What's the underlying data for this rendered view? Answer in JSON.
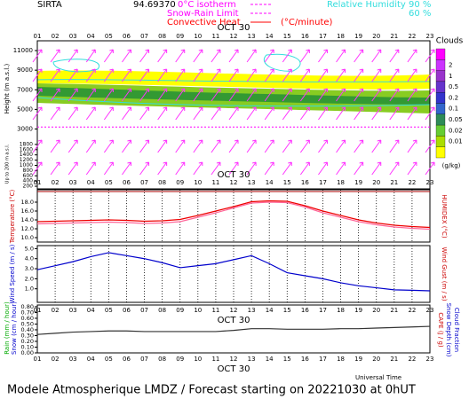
{
  "header": {
    "station": "SIRTA",
    "code": "94.69370",
    "legend": [
      "0°C isotherm",
      "Snow-Rain Limit",
      "Convective Heat"
    ],
    "legend_unit": "(°C/minute)",
    "humidity": "Relative Humidity",
    "humidity_levels": [
      "90 %",
      "60 %"
    ]
  },
  "date": "OCT 30",
  "xlabel": "Universal Time",
  "footer": "Modele Atmospherique LMDZ / Forecast starting on 20221030 at 0hUT",
  "chart_data": [
    {
      "type": "contour",
      "ylabel": "Height (m a.s.l.)",
      "ylabel2": "Up to 200 m a.s.l.",
      "categories": [
        "01",
        "02",
        "03",
        "04",
        "05",
        "06",
        "07",
        "08",
        "09",
        "10",
        "11",
        "12",
        "13",
        "14",
        "15",
        "16",
        "17",
        "18",
        "19",
        "20",
        "21",
        "22",
        "23"
      ],
      "ylim": [
        2500,
        12000
      ],
      "yticks": [
        3000,
        5000,
        7000,
        9000,
        11000
      ],
      "ylim2": [
        100,
        2000
      ],
      "yticks2": [
        200,
        400,
        600,
        800,
        1000,
        1200,
        1400,
        1600,
        1800
      ],
      "isotherm": 3200,
      "colorbar": {
        "title": "Clouds",
        "unit": "(g/kg)",
        "ticks": [
          2,
          1,
          0.5,
          0.2,
          0.1,
          0.05,
          0.02,
          0.01
        ],
        "colors": [
          "#ff00ff",
          "#cc33ff",
          "#9933cc",
          "#6633cc",
          "#3333cc",
          "#3366cc",
          "#2e8b57",
          "#66cc33",
          "#aadd00",
          "#ffff00"
        ]
      }
    },
    {
      "type": "line",
      "ylabel": "Temperature (°C)",
      "y2label": "HUMIDEX (°C)",
      "categories": [
        "01",
        "02",
        "03",
        "04",
        "05",
        "06",
        "07",
        "08",
        "09",
        "10",
        "11",
        "12",
        "13",
        "14",
        "15",
        "16",
        "17",
        "18",
        "19",
        "20",
        "21",
        "22",
        "23"
      ],
      "ylim": [
        9,
        20.8
      ],
      "yticks": [
        {
          "value": 10,
          "label": "10.0"
        },
        {
          "value": 12,
          "label": "12.0"
        },
        {
          "value": 14,
          "label": "14.0"
        },
        {
          "value": 16,
          "label": "16.0"
        },
        {
          "value": 18,
          "label": "18.0"
        }
      ],
      "series": [
        {
          "name": "Temperature",
          "color": "#ee0000",
          "values": [
            13.6,
            13.7,
            13.8,
            13.9,
            14.0,
            13.9,
            13.7,
            13.8,
            14.1,
            15.0,
            16.0,
            17.0,
            18.1,
            18.3,
            18.2,
            17.2,
            16.0,
            15.0,
            14.0,
            13.3,
            12.8,
            12.5,
            12.3
          ]
        },
        {
          "name": "HUMIDEX",
          "color": "#ff6699",
          "values": [
            13.1,
            13.2,
            13.3,
            13.4,
            13.5,
            13.4,
            13.2,
            13.3,
            13.6,
            14.6,
            15.6,
            16.7,
            17.8,
            18.0,
            17.9,
            16.9,
            15.6,
            14.6,
            13.6,
            12.9,
            12.4,
            12.1,
            11.9
          ]
        }
      ]
    },
    {
      "type": "line",
      "ylabel": "Wind Speed (m / s)",
      "y2label": "Wind Gust (m / s)",
      "categories": [
        "01",
        "02",
        "03",
        "04",
        "05",
        "06",
        "07",
        "08",
        "09",
        "10",
        "11",
        "12",
        "13",
        "14",
        "15",
        "16",
        "17",
        "18",
        "19",
        "20",
        "21",
        "22",
        "23"
      ],
      "ylim": [
        -0.35,
        5.3
      ],
      "yticks": [
        {
          "value": 1,
          "label": "1.0"
        },
        {
          "value": 2,
          "label": "2.0"
        },
        {
          "value": 3,
          "label": "3.0"
        },
        {
          "value": 4,
          "label": "4.0"
        },
        {
          "value": 5,
          "label": "5.0"
        }
      ],
      "series": [
        {
          "name": "Wind Speed",
          "color": "#0000cc",
          "values": [
            2.9,
            3.3,
            3.7,
            4.2,
            4.6,
            4.3,
            4.0,
            3.6,
            3.1,
            3.3,
            3.5,
            3.9,
            4.3,
            3.5,
            2.6,
            2.3,
            2.0,
            1.6,
            1.3,
            1.1,
            0.9,
            0.85,
            0.8
          ]
        }
      ]
    },
    {
      "type": "line",
      "ylabel": "Rain (mm / hour)",
      "ylabel2": "Snow (cm / hour)",
      "y2label": "CAPE (J / g)",
      "y2label2": "Snow Depth (cm)",
      "y2label3": "Cloud Fraction",
      "categories": [
        "01",
        "02",
        "03",
        "04",
        "05",
        "06",
        "07",
        "08",
        "09",
        "10",
        "11",
        "12",
        "13",
        "14",
        "15",
        "16",
        "17",
        "18",
        "19",
        "20",
        "21",
        "22",
        "23"
      ],
      "ylim": [
        0,
        0.83
      ],
      "yticks": [
        {
          "value": 0,
          "label": "0.00"
        },
        {
          "value": 0.1,
          "label": "0.10"
        },
        {
          "value": 0.2,
          "label": "0.20"
        },
        {
          "value": 0.3,
          "label": "0.30"
        },
        {
          "value": 0.4,
          "label": "0.40"
        },
        {
          "value": 0.5,
          "label": "0.50"
        },
        {
          "value": 0.6,
          "label": "0.60"
        },
        {
          "value": 0.7,
          "label": "0.70"
        },
        {
          "value": 0.8,
          "label": "0.80"
        }
      ],
      "series": [
        {
          "name": "Cloud Fraction",
          "color": "#333333",
          "values": [
            0.32,
            0.34,
            0.36,
            0.37,
            0.38,
            0.38,
            0.37,
            0.37,
            0.37,
            0.37,
            0.37,
            0.39,
            0.42,
            0.42,
            0.41,
            0.41,
            0.41,
            0.42,
            0.42,
            0.43,
            0.44,
            0.45,
            0.46
          ]
        }
      ]
    }
  ]
}
